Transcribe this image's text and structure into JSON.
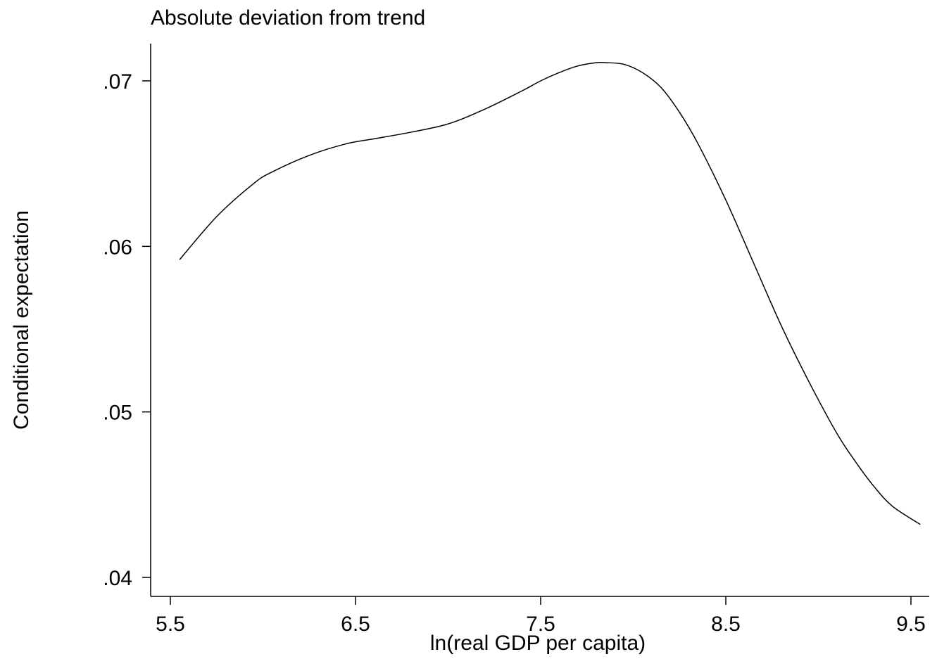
{
  "chart_data": {
    "type": "line",
    "title": "Absolute deviation from trend",
    "xlabel": "ln(real GDP per capita)",
    "ylabel": "Conditional expectation",
    "xlim": [
      5.4,
      9.6
    ],
    "ylim": [
      0.039,
      0.0725
    ],
    "xticks": [
      5.5,
      6.5,
      7.5,
      8.5,
      9.5
    ],
    "xtick_labels": [
      "5.5",
      "6.5",
      "7.5",
      "8.5",
      "9.5"
    ],
    "yticks": [
      0.04,
      0.05,
      0.06,
      0.07
    ],
    "ytick_labels": [
      ".04",
      ".05",
      ".06",
      ".07"
    ],
    "grid": false,
    "series": [
      {
        "x": [
          5.55,
          5.75,
          5.95,
          6.05,
          6.25,
          6.45,
          6.6,
          6.8,
          7.0,
          7.2,
          7.4,
          7.5,
          7.6,
          7.7,
          7.8,
          7.85,
          7.95,
          8.05,
          8.15,
          8.25,
          8.35,
          8.5,
          8.65,
          8.8,
          8.95,
          9.1,
          9.2,
          9.3,
          9.4,
          9.55
        ],
        "y": [
          0.0592,
          0.0618,
          0.0638,
          0.0645,
          0.0655,
          0.0662,
          0.0665,
          0.0669,
          0.0674,
          0.0683,
          0.0694,
          0.07,
          0.0705,
          0.0709,
          0.0711,
          0.0711,
          0.071,
          0.0705,
          0.0696,
          0.0681,
          0.0662,
          0.0628,
          0.059,
          0.0552,
          0.0518,
          0.0487,
          0.047,
          0.0455,
          0.0443,
          0.0432
        ]
      }
    ]
  }
}
